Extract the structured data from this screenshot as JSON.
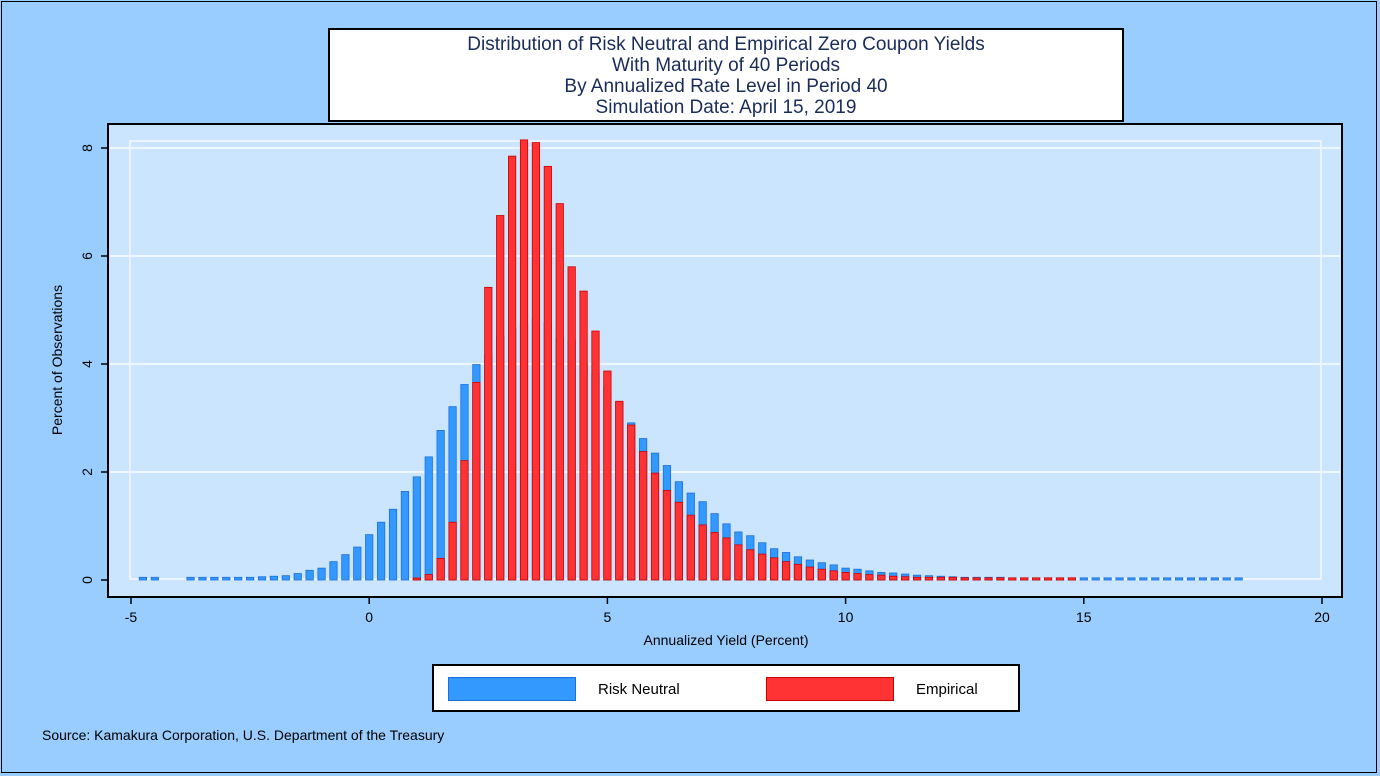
{
  "chart_data": {
    "type": "bar",
    "title": [
      "Distribution of Risk Neutral and Empirical Zero Coupon Yields",
      "With Maturity of 40 Periods",
      "By Annualized Rate Level in Period 40",
      "Simulation Date: April 15, 2019"
    ],
    "xlabel": "Annualized Yield (Percent)",
    "ylabel": "Percent of Observations",
    "xlim": [
      -5,
      20
    ],
    "ylim": [
      0,
      8
    ],
    "xticks": [
      {
        "value": -5,
        "label": "-5"
      },
      {
        "value": 0,
        "label": "0"
      },
      {
        "value": 5,
        "label": "5"
      },
      {
        "value": 10,
        "label": "10"
      },
      {
        "value": 15,
        "label": "15"
      },
      {
        "value": 20,
        "label": "20"
      }
    ],
    "yticks": [
      {
        "value": 0,
        "label": "0"
      },
      {
        "value": 2,
        "label": "2"
      },
      {
        "value": 4,
        "label": "4"
      },
      {
        "value": 6,
        "label": "6"
      },
      {
        "value": 8,
        "label": "8"
      }
    ],
    "grid": true,
    "legend_position": "bottom",
    "bin_width": 0.25,
    "series": [
      {
        "name": "Risk Neutral",
        "color": "#3399ff",
        "edge": "#1e6fd9",
        "start": -4.75,
        "values": [
          0.05,
          0.05,
          0,
          0,
          0.05,
          0.05,
          0.05,
          0.05,
          0.05,
          0.05,
          0.06,
          0.07,
          0.08,
          0.12,
          0.18,
          0.22,
          0.34,
          0.47,
          0.61,
          0.84,
          1.07,
          1.31,
          1.64,
          1.91,
          2.28,
          2.77,
          3.21,
          3.62,
          3.99,
          4.17,
          4.52,
          4.66,
          4.74,
          4.84,
          4.76,
          4.48,
          4.43,
          4.02,
          3.81,
          3.57,
          3.29,
          2.91,
          2.62,
          2.35,
          2.12,
          1.82,
          1.61,
          1.45,
          1.23,
          1.04,
          0.89,
          0.82,
          0.69,
          0.58,
          0.51,
          0.43,
          0.37,
          0.32,
          0.28,
          0.22,
          0.2,
          0.17,
          0.14,
          0.13,
          0.11,
          0.09,
          0.08,
          0.07,
          0.06,
          0.05,
          0.05,
          0.05,
          0.05,
          0.04,
          0.04,
          0.04,
          0.04,
          0.04,
          0.04,
          0.04,
          0.04,
          0.04,
          0.04,
          0.04,
          0.04,
          0.04,
          0.04,
          0.04,
          0.04,
          0.04,
          0.04,
          0.04,
          0.04
        ]
      },
      {
        "name": "Empirical",
        "color": "#ff3333",
        "edge": "#cc0000",
        "start": 1.0,
        "values": [
          0.02,
          0.1,
          0.4,
          1.07,
          2.21,
          3.66,
          5.42,
          6.75,
          7.85,
          8.15,
          8.1,
          7.66,
          6.97,
          5.8,
          5.35,
          4.61,
          3.87,
          3.31,
          2.87,
          2.38,
          1.98,
          1.66,
          1.44,
          1.2,
          1.02,
          0.88,
          0.78,
          0.65,
          0.56,
          0.48,
          0.41,
          0.34,
          0.29,
          0.24,
          0.2,
          0.17,
          0.14,
          0.12,
          0.1,
          0.09,
          0.07,
          0.06,
          0.05,
          0.05,
          0.05,
          0.05,
          0.04,
          0.04,
          0.04,
          0.04,
          0.04,
          0.04,
          0.04,
          0.04,
          0.04,
          0.04
        ]
      }
    ]
  },
  "source": "Source: Kamakura Corporation, U.S. Department of the Treasury"
}
